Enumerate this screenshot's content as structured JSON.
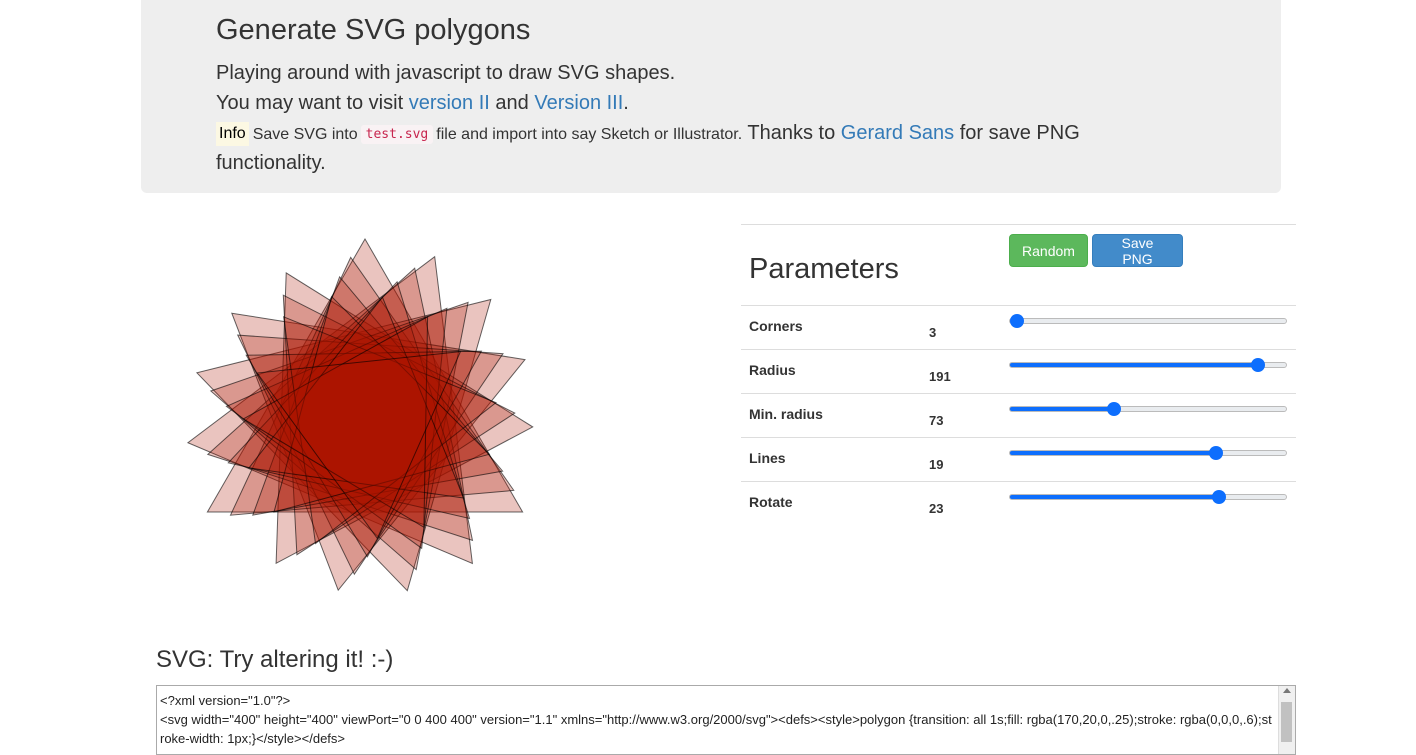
{
  "header": {
    "title": "Generate SVG polygons",
    "line1": "Playing around with javascript to draw SVG shapes.",
    "line2_prefix": "You may want to visit",
    "link_v2": "version II",
    "line2_and": "and",
    "link_v3": "Version III",
    "line2_suffix": ".",
    "info_badge": "Info",
    "info_text1": "Save SVG into",
    "info_code": "test.svg",
    "info_text2": "file and import into say Sketch or Illustrator.",
    "thanks_text": "Thanks to",
    "link_gerard": "Gerard Sans",
    "thanks_suffix": "for save PNG",
    "line4": "functionality."
  },
  "parameters": {
    "title": "Parameters",
    "random_label": "Random",
    "save_png_label": "Save PNG",
    "rows": [
      {
        "label": "Corners",
        "value": "3",
        "fill": 0.0
      },
      {
        "label": "Radius",
        "value": "191",
        "fill": 0.92
      },
      {
        "label": "Min. radius",
        "value": "73",
        "fill": 0.37
      },
      {
        "label": "Lines",
        "value": "19",
        "fill": 0.76
      },
      {
        "label": "Rotate",
        "value": "23",
        "fill": 0.77
      }
    ]
  },
  "polygon": {
    "fill": "rgba(170,20,0,.25)",
    "stroke": "rgba(0,0,0,.6)",
    "corners": 3,
    "radius": 191,
    "min_radius": 73,
    "lines": 19,
    "rotate": 23
  },
  "svg_section": {
    "title": "SVG: Try altering it! :-)",
    "code": "<?xml version=\"1.0\"?>\n<svg width=\"400\" height=\"400\" viewPort=\"0 0 400 400\" version=\"1.1\" xmlns=\"http://www.w3.org/2000/svg\"><defs><style>polygon {transition: all 1s;fill: rgba(170,20,0,.25);stroke: rgba(0,0,0,.6);stroke-width: 1px;}</style></defs>"
  }
}
